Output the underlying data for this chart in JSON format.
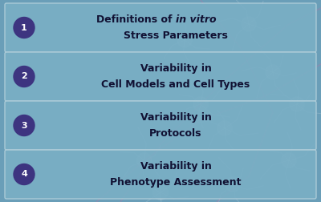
{
  "background_color": "#6a9eb8",
  "box_face_color": "#7aafc5",
  "box_edge_color": "#b0cdd9",
  "circle_color": "#3d3480",
  "circle_text_color": "#ffffff",
  "text_color": "#111133",
  "rows": [
    {
      "number": "1",
      "line1": "Definitions of ",
      "line1_italic": "in vitro",
      "line2": "Stress Parameters"
    },
    {
      "number": "2",
      "line1": "Variability in",
      "line1_italic": "",
      "line2": "Cell Models and Cell Types"
    },
    {
      "number": "3",
      "line1": "Variability in",
      "line1_italic": "",
      "line2": "Protocols"
    },
    {
      "number": "4",
      "line1": "Variability in",
      "line1_italic": "",
      "line2": "Phenotype Assessment"
    }
  ],
  "neuron_color": "#c5d8e2",
  "axon_color": "#c070a8",
  "fig_width": 4.0,
  "fig_height": 2.52,
  "dpi": 100
}
